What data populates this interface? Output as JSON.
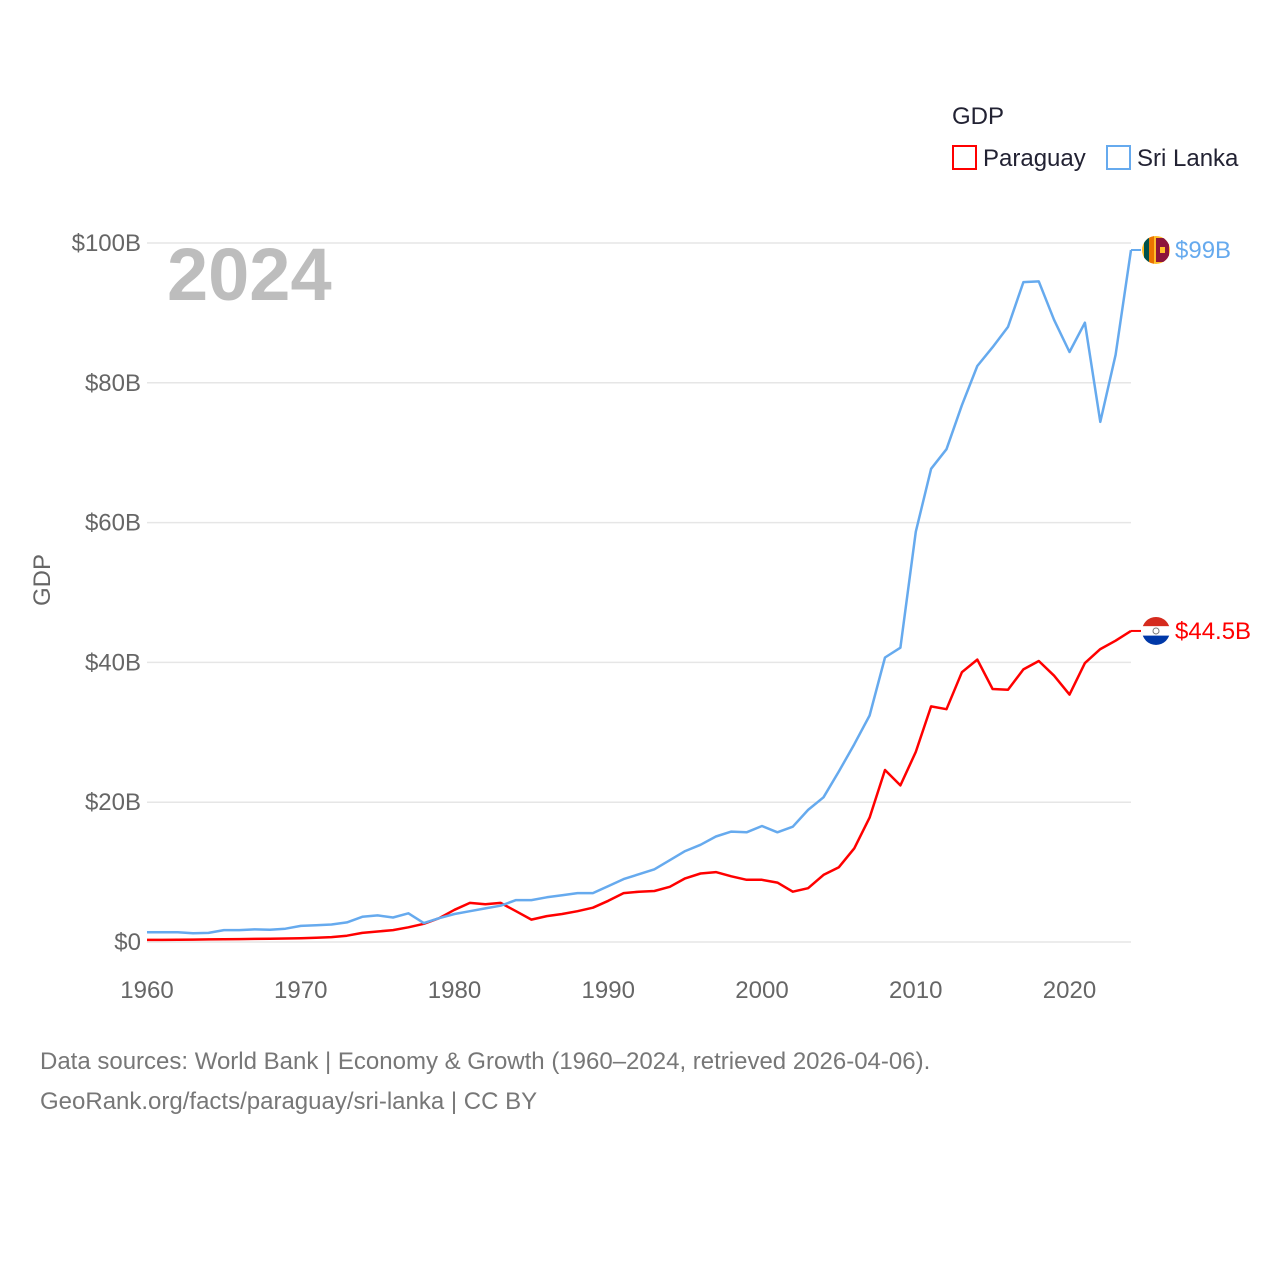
{
  "chart_data": {
    "type": "line",
    "title": "",
    "ylabel": "GDP",
    "xlabel": "",
    "year_label": "2024",
    "legend": {
      "title": "GDP",
      "position": "top-right"
    },
    "xlim": [
      1960,
      2024
    ],
    "ylim": [
      0,
      100
    ],
    "x_ticks": [
      "1960",
      "1970",
      "1980",
      "1990",
      "2000",
      "2010",
      "2020"
    ],
    "y_ticks": [
      {
        "value": 0,
        "label": "$0"
      },
      {
        "value": 20,
        "label": "$20B"
      },
      {
        "value": 40,
        "label": "$40B"
      },
      {
        "value": 60,
        "label": "$60B"
      },
      {
        "value": 80,
        "label": "$80B"
      },
      {
        "value": 100,
        "label": "$100B"
      }
    ],
    "x_start": 1960,
    "units": "billions USD",
    "grid": true,
    "series": [
      {
        "name": "Paraguay",
        "color": "#ff0000",
        "end_label": "$44.5B",
        "values": [
          0.3,
          0.3,
          0.33,
          0.35,
          0.37,
          0.4,
          0.42,
          0.44,
          0.47,
          0.5,
          0.55,
          0.6,
          0.7,
          0.9,
          1.3,
          1.5,
          1.7,
          2.1,
          2.6,
          3.4,
          4.6,
          5.6,
          5.4,
          5.6,
          4.4,
          3.2,
          3.7,
          4.0,
          4.4,
          4.9,
          5.9,
          7.0,
          7.2,
          7.3,
          7.9,
          9.1,
          9.8,
          10.0,
          9.4,
          8.9,
          8.9,
          8.5,
          7.2,
          7.7,
          9.6,
          10.7,
          13.4,
          17.8,
          24.6,
          22.4,
          27.2,
          33.7,
          33.3,
          38.6,
          40.4,
          36.2,
          36.1,
          39.0,
          40.2,
          38.1,
          35.4,
          39.9,
          41.9,
          43.1,
          44.5
        ]
      },
      {
        "name": "Sri Lanka",
        "color": "#66aaee",
        "end_label": "$99B",
        "values": [
          1.4,
          1.4,
          1.4,
          1.24,
          1.3,
          1.7,
          1.7,
          1.8,
          1.75,
          1.9,
          2.3,
          2.4,
          2.5,
          2.8,
          3.6,
          3.8,
          3.5,
          4.1,
          2.7,
          3.4,
          4.0,
          4.4,
          4.8,
          5.2,
          6.0,
          6.0,
          6.4,
          6.7,
          7.0,
          7.0,
          8.0,
          9.0,
          9.7,
          10.4,
          11.7,
          13.0,
          13.9,
          15.1,
          15.8,
          15.7,
          16.6,
          15.7,
          16.5,
          18.9,
          20.7,
          24.4,
          28.3,
          32.4,
          40.7,
          42.1,
          58.7,
          67.7,
          70.5,
          76.8,
          82.4,
          85.1,
          88.0,
          94.4,
          94.5,
          89.0,
          84.4,
          88.6,
          74.4,
          84.0,
          99.0
        ]
      }
    ]
  },
  "footer": {
    "line1": "Data sources: World Bank | Economy & Growth (1960–2024, retrieved 2026-04-06).",
    "line2": "GeoRank.org/facts/paraguay/sri-lanka | CC BY"
  }
}
